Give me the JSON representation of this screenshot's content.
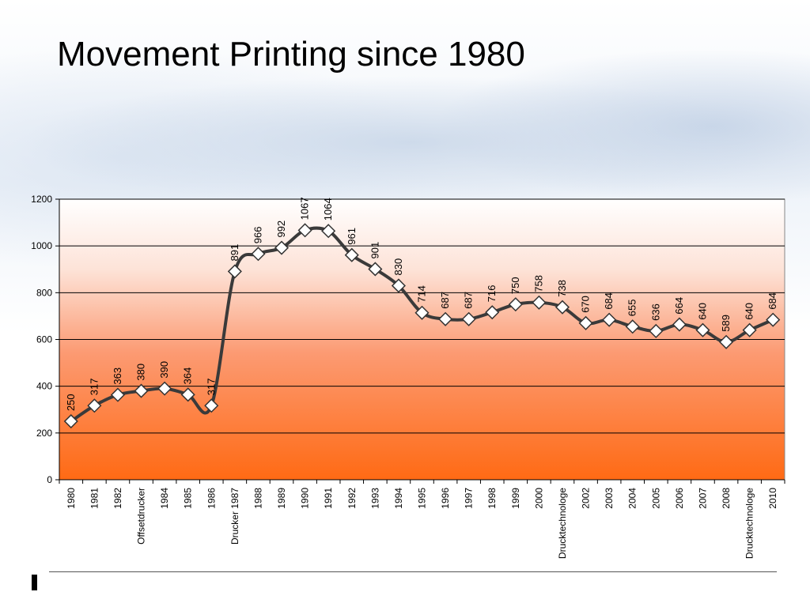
{
  "title": "Movement Printing since 1980",
  "chart_data": {
    "type": "line",
    "title": "",
    "xlabel": "",
    "ylabel": "",
    "ylim": [
      0,
      1200
    ],
    "yticks": [
      0,
      200,
      400,
      600,
      800,
      1000,
      1200
    ],
    "grid": true,
    "categories": [
      "1980",
      "1981",
      "1982",
      "Offsetdrucker",
      "1984",
      "1985",
      "1986",
      "Drucker 1987",
      "1988",
      "1989",
      "1990",
      "1991",
      "1992",
      "1993",
      "1994",
      "1995",
      "1996",
      "1997",
      "1998",
      "1999",
      "2000",
      "Drucktechnologe",
      "2002",
      "2003",
      "2004",
      "2005",
      "2006",
      "2007",
      "2008",
      "Drucktechnologe",
      "2010"
    ],
    "series": [
      {
        "values": [
          250,
          317,
          363,
          380,
          390,
          364,
          317,
          891,
          966,
          992,
          1067,
          1064,
          961,
          901,
          830,
          714,
          687,
          687,
          716,
          750,
          758,
          738,
          670,
          684,
          655,
          636,
          664,
          640,
          589,
          640,
          684
        ]
      }
    ],
    "colors": {
      "line": "#3a3a3a",
      "marker_fill": "#ffffff",
      "marker_stroke": "#333333",
      "fill_top": "#ffffff",
      "fill_bottom": "#ff6a14",
      "gridline": "#000000"
    }
  }
}
